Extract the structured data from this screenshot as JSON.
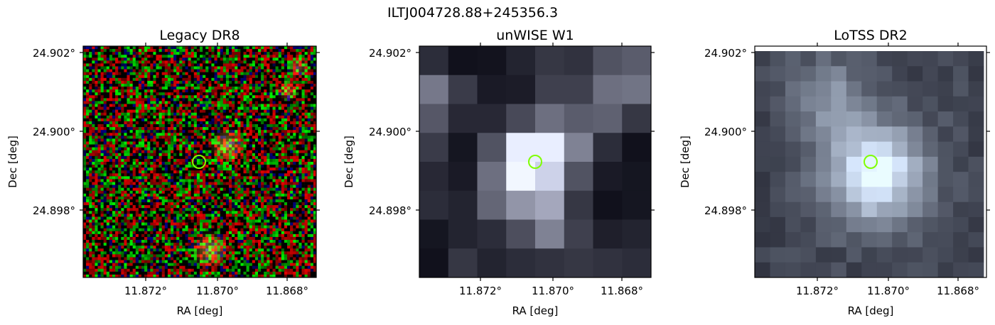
{
  "figure": {
    "title": "ILTJ004728.88+245356.3"
  },
  "panels": [
    {
      "title": "Legacy DR8",
      "xlabel": "RA [deg]",
      "ylabel": "Dec [deg]",
      "xticks": [
        "11.872°",
        "11.870°",
        "11.868°"
      ],
      "yticks": [
        "24.902°",
        "24.900°",
        "24.898°"
      ],
      "image_kind": "rgb-noise",
      "marker_color": "#7fff00"
    },
    {
      "title": "unWISE W1",
      "xlabel": "RA [deg]",
      "ylabel": "Dec [deg]",
      "xticks": [
        "11.872°",
        "11.870°",
        "11.868°"
      ],
      "yticks": [
        "24.902°",
        "24.900°",
        "24.898°"
      ],
      "image_kind": "grayscale-pixels",
      "marker_color": "#7fff00"
    },
    {
      "title": "LoTSS DR2",
      "xlabel": "RA [deg]",
      "ylabel": "Dec [deg]",
      "xticks": [
        "11.872°",
        "11.870°",
        "11.868°"
      ],
      "yticks": [
        "24.902°",
        "24.900°",
        "24.898°"
      ],
      "image_kind": "grayscale-pixels",
      "marker_color": "#7fff00"
    }
  ]
}
